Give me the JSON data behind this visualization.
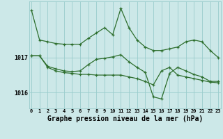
{
  "bg_color": "#cce8e8",
  "grid_color": "#99cccc",
  "line_color": "#2d6e2d",
  "xlabel": "Graphe pression niveau de la mer (hPa)",
  "xlabel_fontsize": 7.0,
  "xtick_labels": [
    "0",
    "1",
    "2",
    "3",
    "4",
    "5",
    "6",
    "7",
    "8",
    "9",
    "10",
    "11",
    "12",
    "13",
    "14",
    "15",
    "16",
    "17",
    "18",
    "19",
    "20",
    "21",
    "22",
    "23"
  ],
  "ytick_values": [
    1016,
    1017
  ],
  "ylim": [
    1015.55,
    1018.6
  ],
  "xlim": [
    -0.3,
    23.3
  ],
  "series": [
    [
      1018.35,
      1017.5,
      1017.45,
      1017.4,
      1017.38,
      1017.38,
      1017.38,
      1017.55,
      1017.7,
      1017.85,
      1017.65,
      1018.4,
      1017.85,
      1017.5,
      1017.3,
      1017.2,
      1017.2,
      1017.25,
      1017.3,
      1017.45,
      1017.5,
      1017.45,
      1017.2,
      1017.0
    ],
    [
      1017.05,
      1017.05,
      1016.75,
      1016.68,
      1016.62,
      1016.6,
      1016.62,
      1016.8,
      1016.95,
      1016.98,
      1017.02,
      1017.08,
      1016.88,
      1016.72,
      1016.58,
      1015.88,
      1015.82,
      1016.55,
      1016.72,
      1016.62,
      1016.52,
      1016.45,
      1016.32,
      1016.32
    ],
    [
      1017.05,
      1017.05,
      1016.72,
      1016.62,
      1016.57,
      1016.55,
      1016.52,
      1016.52,
      1016.5,
      1016.5,
      1016.5,
      1016.5,
      1016.45,
      1016.4,
      1016.32,
      1016.22,
      1016.62,
      1016.72,
      1016.5,
      1016.45,
      1016.4,
      1016.35,
      1016.3,
      1016.28
    ]
  ]
}
